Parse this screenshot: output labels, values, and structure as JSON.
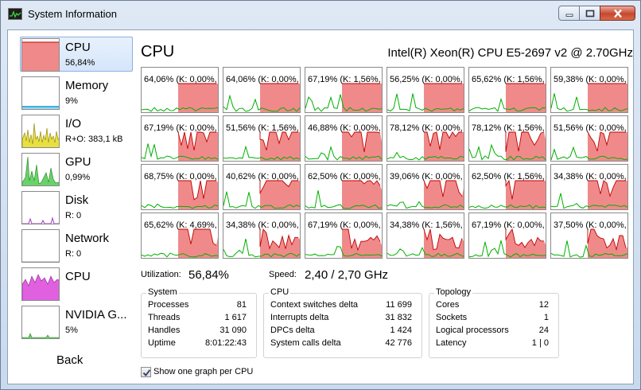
{
  "window": {
    "title": "System Information"
  },
  "sidebar": {
    "items": [
      {
        "name": "CPU",
        "sub": "56,84%",
        "thumb": "cpu",
        "selected": true
      },
      {
        "name": "Memory",
        "sub": "9%",
        "thumb": "memory"
      },
      {
        "name": "I/O",
        "sub": "R+O: 383,1 kB",
        "thumb": "io"
      },
      {
        "name": "GPU",
        "sub": "0,99%",
        "thumb": "gpu"
      },
      {
        "name": "Disk",
        "sub": "R: 0",
        "thumb": "disk"
      },
      {
        "name": "Network",
        "sub": "R: 0",
        "thumb": "network"
      },
      {
        "name": "CPU",
        "sub": "",
        "thumb": "cpu2"
      },
      {
        "name": "NVIDIA G...",
        "sub": "5%",
        "thumb": "nvidia"
      }
    ],
    "back_label": "Back"
  },
  "main": {
    "title": "CPU",
    "model": "Intel(R) Xeon(R) CPU E5-2697 v2 @ 2.70GHz",
    "cores": [
      "64,06% (K: 0,00%, ...",
      "64,06% (K: 0,00%, ...",
      "67,19% (K: 1,56%, ...",
      "56,25% (K: 0,00%, ...",
      "65,62% (K: 1,56%, ...",
      "59,38% (K: 0,00%, ...",
      "67,19% (K: 0,00%, ...",
      "51,56% (K: 1,56%, ...",
      "46,88% (K: 0,00%, ...",
      "78,12% (K: 0,00%, ...",
      "78,12% (K: 1,56%, ...",
      "51,56% (K: 0,00%, ...",
      "68,75% (K: 0,00%, ...",
      "40,62% (K: 0,00%, ...",
      "62,50% (K: 0,00%, ...",
      "39,06% (K: 0,00%, ...",
      "62,50% (K: 1,56%, ...",
      "34,38% (K: 0,00%, ...",
      "65,62% (K: 4,69%, ...",
      "34,38% (K: 0,00%, ...",
      "67,19% (K: 0,00%, ...",
      "34,38% (K: 1,56%, ...",
      "67,19% (K: 0,00%, ...",
      "37,50% (K: 0,00%, ..."
    ],
    "utilization_label": "Utilization:",
    "utilization_value": "56,84%",
    "speed_label": "Speed:",
    "speed_value": "2,40 / 2,70 GHz",
    "groups": {
      "system": {
        "title": "System",
        "rows": [
          {
            "k": "Processes",
            "v": "81"
          },
          {
            "k": "Threads",
            "v": "1 617"
          },
          {
            "k": "Handles",
            "v": "31 090"
          },
          {
            "k": "Uptime",
            "v": "8:01:22:43"
          }
        ]
      },
      "cpu": {
        "title": "CPU",
        "rows": [
          {
            "k": "Context switches delta",
            "v": "11 699"
          },
          {
            "k": "Interrupts delta",
            "v": "31 832"
          },
          {
            "k": "DPCs delta",
            "v": "1 424"
          },
          {
            "k": "System calls delta",
            "v": "42 776"
          }
        ]
      },
      "topology": {
        "title": "Topology",
        "rows": [
          {
            "k": "Cores",
            "v": "12"
          },
          {
            "k": "Sockets",
            "v": "1"
          },
          {
            "k": "Logical processors",
            "v": "24"
          },
          {
            "k": "Latency",
            "v": "1 | 0"
          }
        ]
      }
    },
    "checkbox_label": "Show one graph per CPU",
    "checkbox_checked": true
  },
  "colors": {
    "cpu_fill": "#f08a8a",
    "cpu_line": "#c00000",
    "kernel_line": "#00b000",
    "memory_line": "#3cb4e0",
    "io_fill": "#e8e040",
    "gpu_fill": "#6ad26a",
    "disk_line": "#a040c0",
    "cpu2_fill": "#e060e0"
  },
  "icons": {
    "title": "chart-icon",
    "minimize": "minimize-icon",
    "maximize": "maximize-icon",
    "close": "close-icon",
    "check": "check-icon"
  }
}
